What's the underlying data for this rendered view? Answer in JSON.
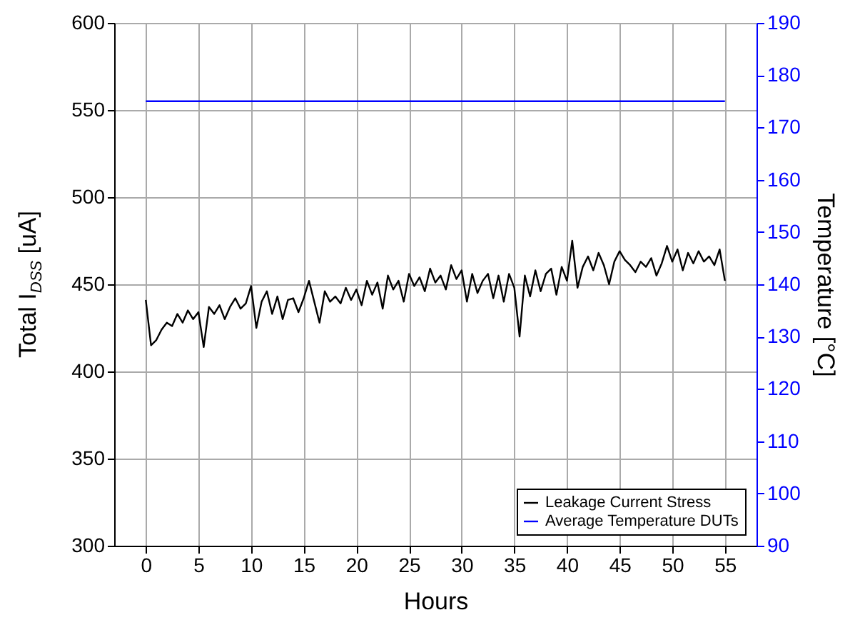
{
  "chart_data": {
    "type": "line",
    "xlabel": "Hours",
    "ylabel": "Total I$_{DSS}$ [uA]",
    "y2label": "Temperature [°C]",
    "xlim": [
      -3,
      58
    ],
    "xticks": [
      0,
      5,
      10,
      15,
      20,
      25,
      30,
      35,
      40,
      45,
      50,
      55
    ],
    "ylim": [
      300,
      600
    ],
    "yticks": [
      300,
      350,
      400,
      450,
      500,
      550,
      600
    ],
    "y2lim": [
      90,
      190
    ],
    "y2ticks": [
      90,
      100,
      110,
      120,
      130,
      140,
      150,
      160,
      170,
      180,
      190
    ],
    "grid": true,
    "legend": "bottom right",
    "series": [
      {
        "name": "Leakage Current Stress",
        "color": "#000000",
        "x": [
          0,
          0.5,
          1,
          1.5,
          2,
          2.5,
          3,
          3.5,
          4,
          4.5,
          5,
          5.5,
          6,
          6.5,
          7,
          7.5,
          8,
          8.5,
          9,
          9.5,
          10,
          10.5,
          11,
          11.5,
          12,
          12.5,
          13,
          13.5,
          14,
          14.5,
          15,
          15.5,
          16,
          16.5,
          17,
          17.5,
          18,
          18.5,
          19,
          19.5,
          20,
          20.5,
          21,
          21.5,
          22,
          22.5,
          23,
          23.5,
          24,
          24.5,
          25,
          25.5,
          26,
          26.5,
          27,
          27.5,
          28,
          28.5,
          29,
          29.5,
          30,
          30.5,
          31,
          31.5,
          32,
          32.5,
          33,
          33.5,
          34,
          34.5,
          35,
          35.5,
          36,
          36.5,
          37,
          37.5,
          38,
          38.5,
          39,
          39.5,
          40,
          40.5,
          41,
          41.5,
          42,
          42.5,
          43,
          43.5,
          44,
          44.5,
          45,
          45.5,
          46,
          46.5,
          47,
          47.5,
          48,
          48.5,
          49,
          49.5,
          50,
          50.5,
          51,
          51.5,
          52,
          52.5,
          53,
          53.5,
          54,
          54.5,
          55
        ],
        "values": [
          441,
          415,
          418,
          424,
          428,
          426,
          433,
          428,
          435,
          430,
          434,
          414,
          437,
          433,
          438,
          430,
          437,
          442,
          436,
          439,
          449,
          425,
          440,
          446,
          433,
          443,
          430,
          441,
          442,
          434,
          442,
          452,
          440,
          428,
          446,
          440,
          443,
          439,
          448,
          441,
          447,
          438,
          452,
          444,
          451,
          436,
          455,
          447,
          452,
          440,
          456,
          449,
          454,
          446,
          459,
          451,
          455,
          447,
          461,
          453,
          458,
          440,
          456,
          445,
          452,
          456,
          442,
          455,
          440,
          456,
          448,
          420,
          455,
          443,
          458,
          446,
          456,
          459,
          444,
          460,
          452,
          475,
          448,
          460,
          466,
          458,
          468,
          461,
          450,
          463,
          469,
          464,
          461,
          457,
          463,
          460,
          465,
          455,
          462,
          472,
          463,
          470,
          458,
          468,
          462,
          469,
          463,
          466,
          461,
          470,
          452
        ]
      },
      {
        "name": "Average Temperature DUTs",
        "color": "#0000ff",
        "axis": "y2",
        "x": [
          0,
          5,
          10,
          15,
          20,
          25,
          30,
          35,
          40,
          45,
          50,
          55
        ],
        "values": [
          175,
          175,
          175,
          175,
          175,
          175,
          175,
          175,
          175,
          175,
          175,
          175
        ]
      }
    ]
  }
}
